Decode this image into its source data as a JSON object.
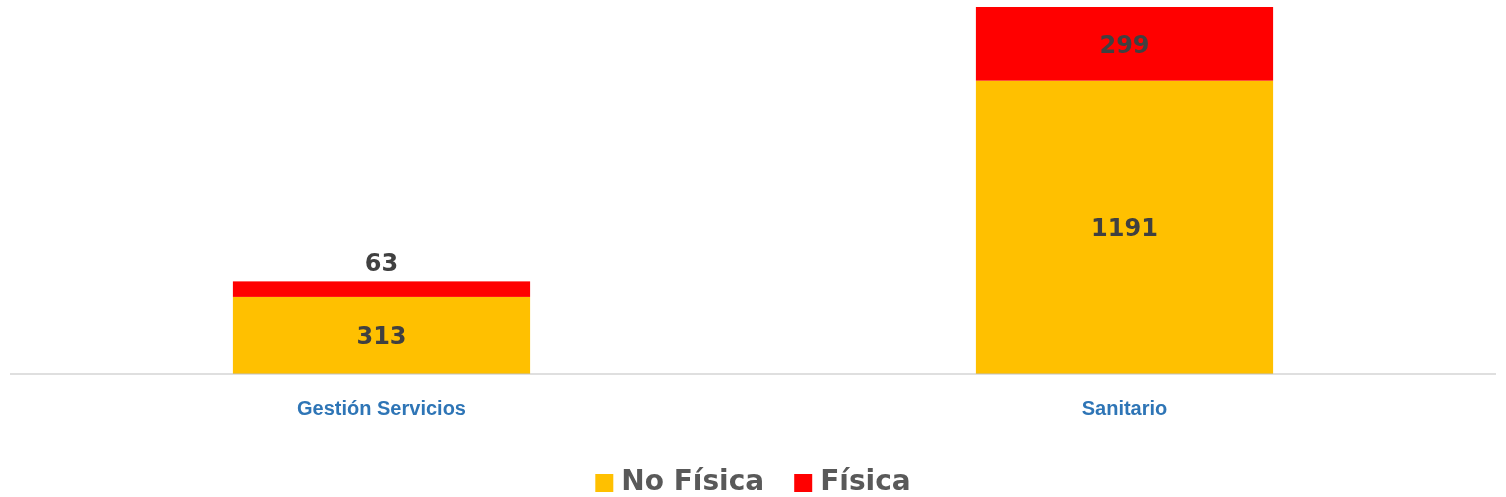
{
  "chart_data": {
    "type": "bar",
    "stacked": true,
    "categories": [
      "Gestión Servicios",
      "Sanitario"
    ],
    "series": [
      {
        "name": "No Física",
        "color": "#ffc000",
        "values": [
          313,
          1191
        ]
      },
      {
        "name": "Física",
        "color": "#ff0000",
        "values": [
          63,
          299
        ]
      }
    ],
    "data_labels": true,
    "legend": "bottom"
  }
}
